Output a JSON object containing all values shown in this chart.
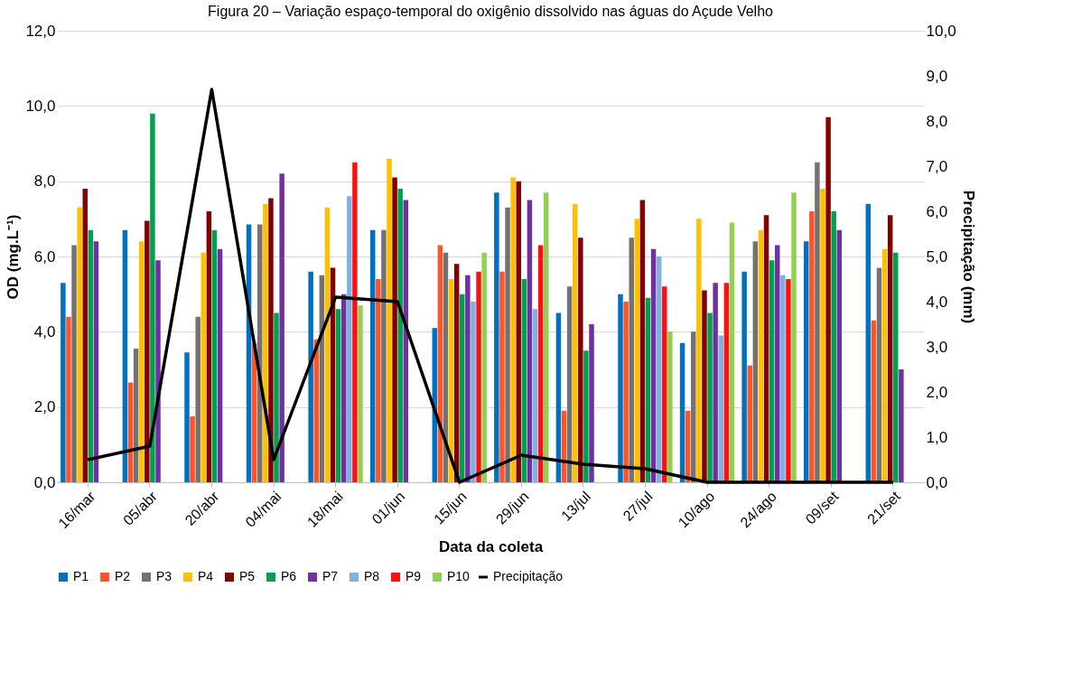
{
  "chart_data": {
    "type": "bar",
    "title": "Figura 20 – Variação espaço-temporal do oxigênio dissolvido nas águas do Açude Velho",
    "xlabel": "Data da coleta",
    "ylabel": "OD (mg.L⁻¹)",
    "y2label": "Precipitação (mm)",
    "categories": [
      "16/mar",
      "05/abr",
      "20/abr",
      "04/mai",
      "18/mai",
      "01/jun",
      "15/jun",
      "29/jun",
      "13/jul",
      "27/jul",
      "10/ago",
      "24/ago",
      "09/set",
      "21/set"
    ],
    "ylim": [
      0,
      12
    ],
    "yticks": [
      {
        "value": 0,
        "label": "0,0"
      },
      {
        "value": 2,
        "label": "2,0"
      },
      {
        "value": 4,
        "label": "4,0"
      },
      {
        "value": 6,
        "label": "6,0"
      },
      {
        "value": 8,
        "label": "8,0"
      },
      {
        "value": 10,
        "label": "10,0"
      },
      {
        "value": 12,
        "label": "12,0"
      }
    ],
    "y2lim": [
      0,
      10
    ],
    "y2ticks": [
      {
        "value": 0,
        "label": "0,0"
      },
      {
        "value": 1,
        "label": "1,0"
      },
      {
        "value": 2,
        "label": "2,0"
      },
      {
        "value": 3,
        "label": "3,0"
      },
      {
        "value": 4,
        "label": "4,0"
      },
      {
        "value": 5,
        "label": "5,0"
      },
      {
        "value": 6,
        "label": "6,0"
      },
      {
        "value": 7,
        "label": "7,0"
      },
      {
        "value": 8,
        "label": "8,0"
      },
      {
        "value": 9,
        "label": "9,0"
      },
      {
        "value": 10,
        "label": "10,0"
      }
    ],
    "grid": "y",
    "legend": "bottom",
    "series": [
      {
        "name": "P1",
        "color": "#0070c0",
        "values": [
          5.3,
          6.7,
          3.45,
          6.85,
          5.6,
          6.7,
          4.1,
          7.7,
          4.5,
          5.0,
          3.7,
          5.6,
          6.4,
          7.4
        ]
      },
      {
        "name": "P2",
        "color": "#ff5329",
        "values": [
          4.4,
          2.65,
          1.75,
          3.7,
          3.8,
          5.4,
          6.3,
          5.6,
          1.9,
          4.8,
          1.9,
          3.1,
          7.2,
          4.3
        ]
      },
      {
        "name": "P3",
        "color": "#767171",
        "values": [
          6.3,
          3.55,
          4.4,
          6.85,
          5.5,
          6.7,
          6.1,
          7.3,
          5.2,
          6.5,
          4.0,
          6.4,
          8.5,
          5.7
        ]
      },
      {
        "name": "P4",
        "color": "#ffc000",
        "values": [
          7.3,
          6.4,
          6.1,
          7.4,
          7.3,
          8.6,
          5.4,
          8.1,
          7.4,
          7.0,
          7.0,
          6.7,
          7.8,
          6.2
        ]
      },
      {
        "name": "P5",
        "color": "#820000",
        "values": [
          7.8,
          6.95,
          7.2,
          7.55,
          5.7,
          8.1,
          5.8,
          8.0,
          6.5,
          7.5,
          5.1,
          7.1,
          9.7,
          7.1
        ]
      },
      {
        "name": "P6",
        "color": "#00a050",
        "values": [
          6.7,
          9.8,
          6.7,
          4.5,
          4.6,
          7.8,
          5.0,
          5.4,
          3.5,
          4.9,
          4.5,
          5.9,
          7.2,
          6.1
        ]
      },
      {
        "name": "P7",
        "color": "#7030a0",
        "values": [
          6.4,
          5.9,
          6.2,
          8.2,
          5.0,
          7.5,
          5.5,
          7.5,
          4.2,
          6.2,
          5.3,
          6.3,
          6.7,
          3.0
        ]
      },
      {
        "name": "P8",
        "color": "#7fb0e0",
        "values": [
          null,
          null,
          null,
          null,
          7.6,
          null,
          4.8,
          4.6,
          null,
          6.0,
          3.9,
          5.5,
          null,
          null
        ]
      },
      {
        "name": "P9",
        "color": "#ff1010",
        "values": [
          null,
          null,
          null,
          null,
          8.5,
          null,
          5.6,
          6.3,
          null,
          5.2,
          5.3,
          5.4,
          null,
          null
        ]
      },
      {
        "name": "P10",
        "color": "#92d050",
        "values": [
          null,
          null,
          null,
          null,
          4.7,
          null,
          6.1,
          7.7,
          null,
          4.0,
          6.9,
          7.7,
          null,
          null
        ]
      },
      {
        "name": "Precipitação",
        "color": "#000000",
        "type": "line",
        "axis": "y2",
        "values": [
          0.5,
          0.8,
          8.7,
          0.5,
          4.1,
          4.0,
          0.0,
          0.6,
          0.4,
          0.3,
          0.0,
          0.0,
          0.0,
          0.0
        ]
      }
    ]
  }
}
